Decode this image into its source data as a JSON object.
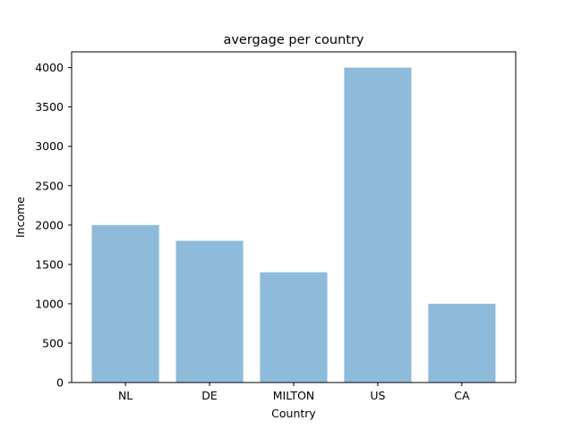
{
  "chart_data": {
    "type": "bar",
    "title": "avergage per country",
    "xlabel": "Country",
    "ylabel": "Income",
    "categories": [
      "NL",
      "DE",
      "MILTON",
      "US",
      "CA"
    ],
    "values": [
      2000,
      1800,
      1400,
      4000,
      1000
    ],
    "ylim": [
      0,
      4200
    ],
    "yticks": [
      0,
      500,
      1000,
      1500,
      2000,
      2500,
      3000,
      3500,
      4000
    ],
    "grid": false,
    "legend": "none",
    "bar_color": "#8fbbda"
  }
}
